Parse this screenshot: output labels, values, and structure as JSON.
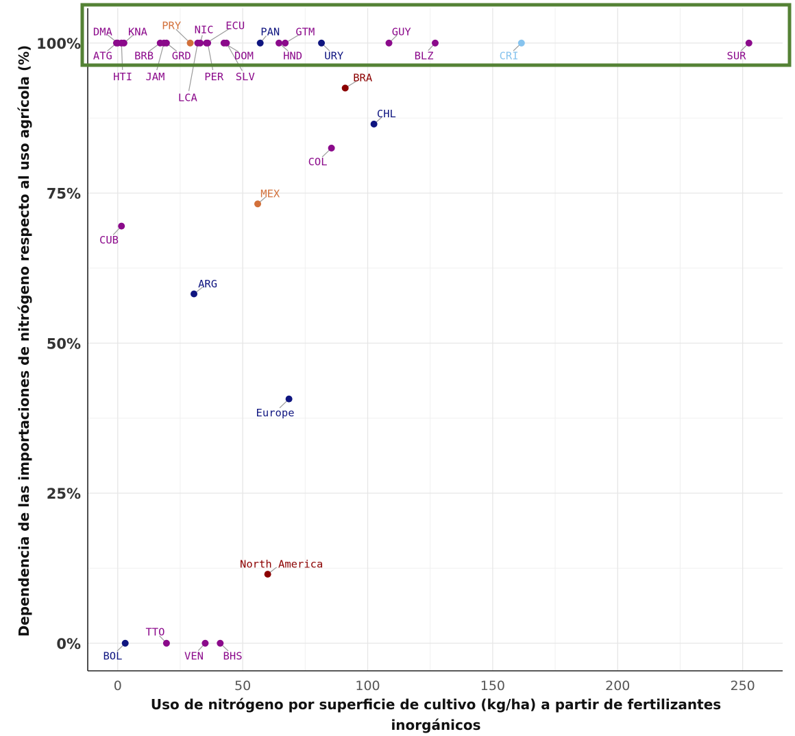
{
  "chart_data": {
    "type": "scatter",
    "title": "",
    "xlabel_lines": [
      "Uso de nitrógeno por superficie de cultivo (kg/ha) a partir de fertilizantes",
      "inorgánicos"
    ],
    "ylabel": "Dependencia de las importaciones de nitrógeno respecto al uso agrícola (%)",
    "xlim": [
      -12,
      266
    ],
    "ylim": [
      -4.6,
      105.8
    ],
    "x_ticks": [
      0,
      50,
      100,
      150,
      200,
      250
    ],
    "x_tick_labels": [
      "0",
      "50",
      "100",
      "150",
      "200",
      "250"
    ],
    "y_ticks": [
      0,
      25,
      50,
      75,
      100
    ],
    "y_tick_labels": [
      "0%",
      "25%",
      "50%",
      "75%",
      "100%"
    ],
    "grid": true,
    "legend": "none",
    "group_colors": {
      "purple": "#8b0a8b",
      "navy": "#0f1580",
      "orange": "#d2703a",
      "darkred": "#8b0000",
      "lightblue": "#86c3ee"
    },
    "highlight_box_color": "#548235",
    "points": [
      {
        "label": "DMA",
        "x": 0.0,
        "y": 100,
        "group": "purple",
        "lx": -6,
        "ly": 102
      },
      {
        "label": "KNA",
        "x": 2.5,
        "y": 100,
        "group": "purple",
        "lx": 8,
        "ly": 102
      },
      {
        "label": "ATG",
        "x": -0.5,
        "y": 100,
        "group": "purple",
        "lx": -6,
        "ly": 98
      },
      {
        "label": "HTI",
        "x": 1.5,
        "y": 100,
        "group": "purple",
        "lx": 2,
        "ly": 94.5
      },
      {
        "label": "BRB",
        "x": 17.0,
        "y": 100,
        "group": "purple",
        "lx": 10.5,
        "ly": 98
      },
      {
        "label": "JAM",
        "x": 18.5,
        "y": 100,
        "group": "purple",
        "lx": 15,
        "ly": 94.5
      },
      {
        "label": "GRD",
        "x": 19.5,
        "y": 100,
        "group": "purple",
        "lx": 25.5,
        "ly": 98
      },
      {
        "label": "PRY",
        "x": 29.0,
        "y": 100,
        "group": "orange",
        "lx": 21.5,
        "ly": 103
      },
      {
        "label": "LCA",
        "x": 32.0,
        "y": 100,
        "group": "purple",
        "lx": 28,
        "ly": 91
      },
      {
        "label": "NIC",
        "x": 33.0,
        "y": 100,
        "group": "purple",
        "lx": 34.5,
        "ly": 102.3
      },
      {
        "label": "ECU",
        "x": 35.5,
        "y": 100,
        "group": "purple",
        "lx": 47,
        "ly": 103
      },
      {
        "label": "PER",
        "x": 36.0,
        "y": 100,
        "group": "purple",
        "lx": 38.5,
        "ly": 94.5
      },
      {
        "label": "DOM",
        "x": 42.5,
        "y": 100,
        "group": "purple",
        "lx": 50.5,
        "ly": 98
      },
      {
        "label": "SLV",
        "x": 43.5,
        "y": 100,
        "group": "purple",
        "lx": 51,
        "ly": 94.5
      },
      {
        "label": "PAN",
        "x": 57.0,
        "y": 100,
        "group": "navy",
        "lx": 61,
        "ly": 102
      },
      {
        "label": "HND",
        "x": 64.5,
        "y": 100,
        "group": "purple",
        "lx": 70,
        "ly": 98
      },
      {
        "label": "GTM",
        "x": 67.0,
        "y": 100,
        "group": "purple",
        "lx": 75,
        "ly": 102
      },
      {
        "label": "URY",
        "x": 81.5,
        "y": 100,
        "group": "navy",
        "lx": 86.5,
        "ly": 98
      },
      {
        "label": "GUY",
        "x": 108.5,
        "y": 100,
        "group": "purple",
        "lx": 113.5,
        "ly": 102
      },
      {
        "label": "BLZ",
        "x": 127.0,
        "y": 100,
        "group": "purple",
        "lx": 122.5,
        "ly": 98
      },
      {
        "label": "CRI",
        "x": 161.5,
        "y": 100,
        "group": "lightblue",
        "lx": 156.5,
        "ly": 98
      },
      {
        "label": "SUR",
        "x": 252.5,
        "y": 100,
        "group": "purple",
        "lx": 247.5,
        "ly": 98
      },
      {
        "label": "BRA",
        "x": 91.0,
        "y": 92.5,
        "group": "darkred",
        "lx": 98,
        "ly": 94.3
      },
      {
        "label": "CHL",
        "x": 102.5,
        "y": 86.5,
        "group": "navy",
        "lx": 107.5,
        "ly": 88.3
      },
      {
        "label": "COL",
        "x": 85.5,
        "y": 82.5,
        "group": "purple",
        "lx": 80,
        "ly": 80.3
      },
      {
        "label": "MEX",
        "x": 56.0,
        "y": 73.2,
        "group": "orange",
        "lx": 61,
        "ly": 75
      },
      {
        "label": "CUB",
        "x": 1.5,
        "y": 69.5,
        "group": "purple",
        "lx": -3.5,
        "ly": 67.3
      },
      {
        "label": "ARG",
        "x": 30.5,
        "y": 58.2,
        "group": "navy",
        "lx": 36,
        "ly": 60
      },
      {
        "label": "Europe",
        "x": 68.5,
        "y": 40.7,
        "group": "navy",
        "lx": 63,
        "ly": 38.5
      },
      {
        "label": "North America",
        "x": 60.0,
        "y": 11.5,
        "group": "darkred",
        "lx": 65.5,
        "ly": 13.3
      },
      {
        "label": "TTO",
        "x": 19.5,
        "y": 0.0,
        "group": "purple",
        "lx": 15,
        "ly": 2
      },
      {
        "label": "BOL",
        "x": 3.0,
        "y": 0.0,
        "group": "navy",
        "lx": -2,
        "ly": -2
      },
      {
        "label": "VEN",
        "x": 35.0,
        "y": 0.0,
        "group": "purple",
        "lx": 30.5,
        "ly": -2
      },
      {
        "label": "BHS",
        "x": 41.0,
        "y": 0.0,
        "group": "purple",
        "lx": 46,
        "ly": -2
      }
    ]
  }
}
